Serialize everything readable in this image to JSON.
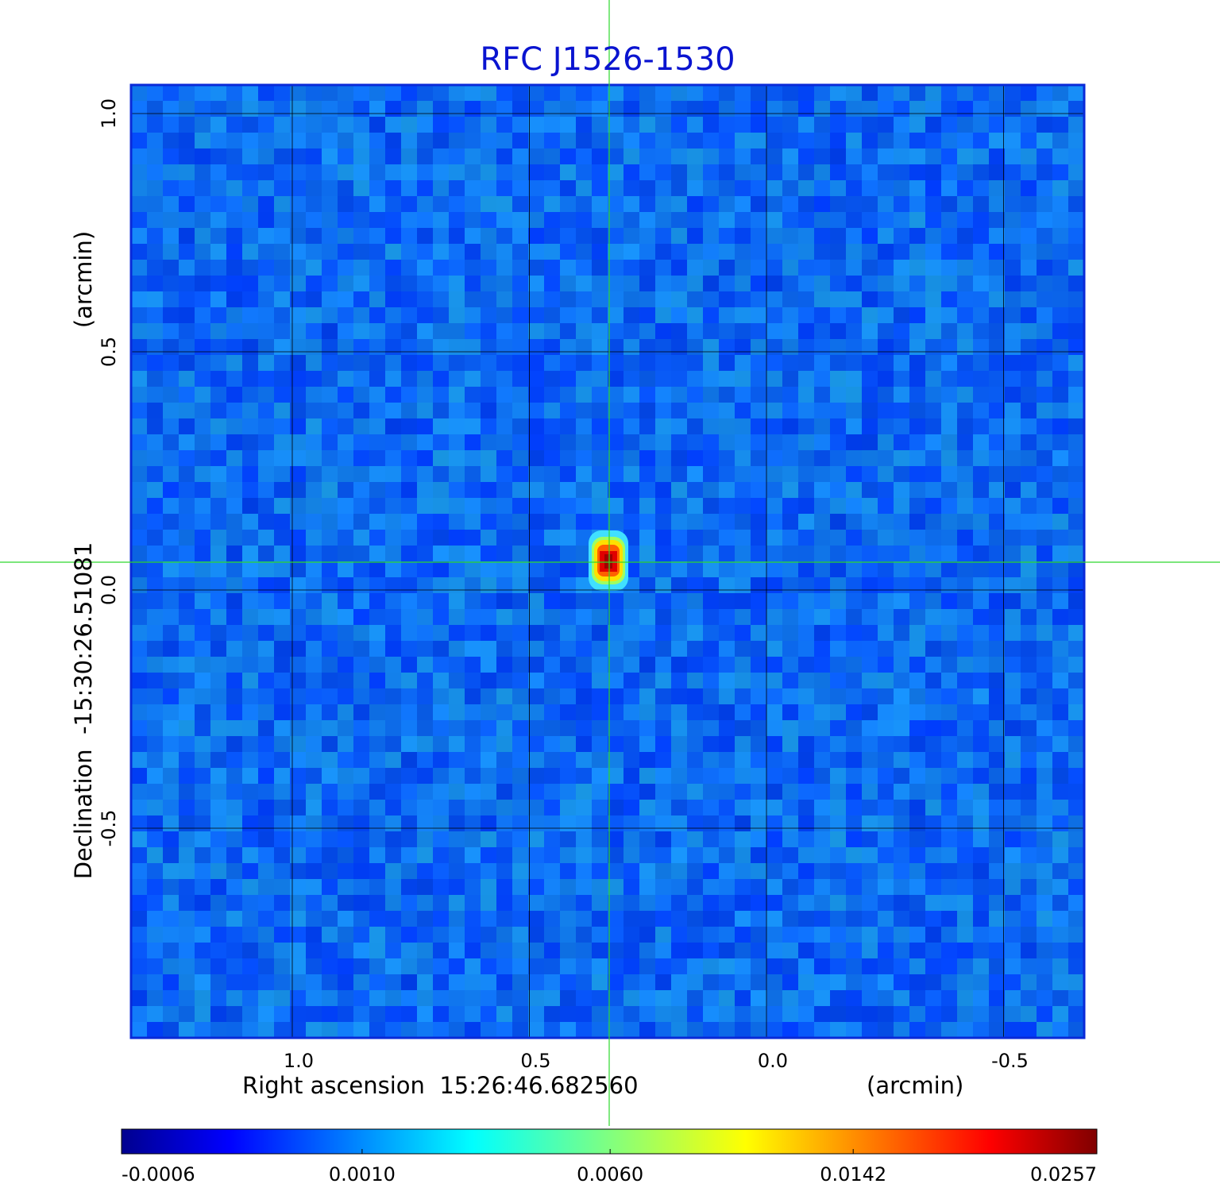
{
  "chart_data": {
    "type": "image",
    "title": "RFC J1526-1530",
    "x_label": "Right ascension  15:26:46.682560",
    "x_unit": "(arcmin)",
    "y_label": "Declination  -15:30:26.51081",
    "y_unit": "(arcmin)",
    "xlim": [
      1.34,
      -0.67
    ],
    "ylim": [
      -0.94,
      1.06
    ],
    "xticks": [
      {
        "value": 1,
        "label": "1.0"
      },
      0.5,
      {
        "value": 0,
        "label": "0.0"
      },
      -0.5
    ],
    "yticks": [
      {
        "value": 1,
        "label": "1.0"
      },
      0.5,
      {
        "value": 0,
        "label": "0.0"
      },
      -0.5
    ],
    "grid": true,
    "colorbar": {
      "scale": "sqrt",
      "lim": [
        -0.0006,
        0.0257
      ],
      "ticks": [
        {
          "value": -0.0006,
          "label": "-0.0006"
        },
        {
          "value": 0.001,
          "label": "0.0010"
        },
        {
          "value": 0.006,
          "label": "0.0060"
        },
        {
          "value": 0.0142,
          "label": "0.0142"
        },
        {
          "value": 0.0257,
          "label": "0.0257"
        }
      ]
    }
  }
}
